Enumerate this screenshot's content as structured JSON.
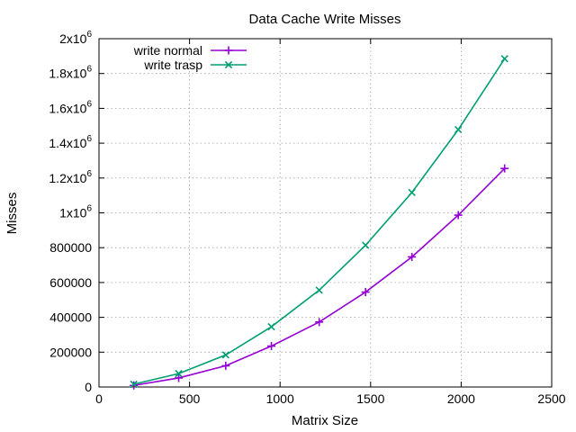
{
  "chart_data": {
    "type": "line",
    "title": "Data Cache Write Misses",
    "xlabel": "Matrix Size",
    "ylabel": "Misses",
    "xlim": [
      0,
      2500
    ],
    "ylim": [
      0,
      2000000
    ],
    "grid": true,
    "legend_position": "top-left",
    "x_ticks": [
      {
        "value": 0,
        "label": "0"
      },
      {
        "value": 500,
        "label": "500"
      },
      {
        "value": 1000,
        "label": "1000"
      },
      {
        "value": 1500,
        "label": "1500"
      },
      {
        "value": 2000,
        "label": "2000"
      },
      {
        "value": 2500,
        "label": "2500"
      }
    ],
    "y_ticks": [
      {
        "value": 0,
        "label": "0"
      },
      {
        "value": 200000,
        "label": "200000"
      },
      {
        "value": 400000,
        "label": "400000"
      },
      {
        "value": 600000,
        "label": "600000"
      },
      {
        "value": 800000,
        "label": "800000"
      },
      {
        "value": 1000000,
        "mant": "1x10",
        "exp": "6"
      },
      {
        "value": 1200000,
        "mant": "1.2x10",
        "exp": "6"
      },
      {
        "value": 1400000,
        "mant": "1.4x10",
        "exp": "6"
      },
      {
        "value": 1600000,
        "mant": "1.6x10",
        "exp": "6"
      },
      {
        "value": 1800000,
        "mant": "1.8x10",
        "exp": "6"
      },
      {
        "value": 2000000,
        "mant": "2x10",
        "exp": "6"
      }
    ],
    "series": [
      {
        "name": "write normal",
        "color": "#9400d3",
        "marker": "plus",
        "x": [
          192,
          440,
          700,
          952,
          1216,
          1472,
          1728,
          1984,
          2240
        ],
        "y": [
          9000,
          52000,
          122000,
          235000,
          373000,
          545000,
          747000,
          987000,
          1255000
        ]
      },
      {
        "name": "write trasp",
        "color": "#009e73",
        "marker": "cross",
        "x": [
          192,
          440,
          700,
          952,
          1216,
          1472,
          1728,
          1984,
          2240
        ],
        "y": [
          16000,
          77000,
          184000,
          346000,
          556000,
          814000,
          1117000,
          1478000,
          1885000
        ]
      }
    ]
  }
}
